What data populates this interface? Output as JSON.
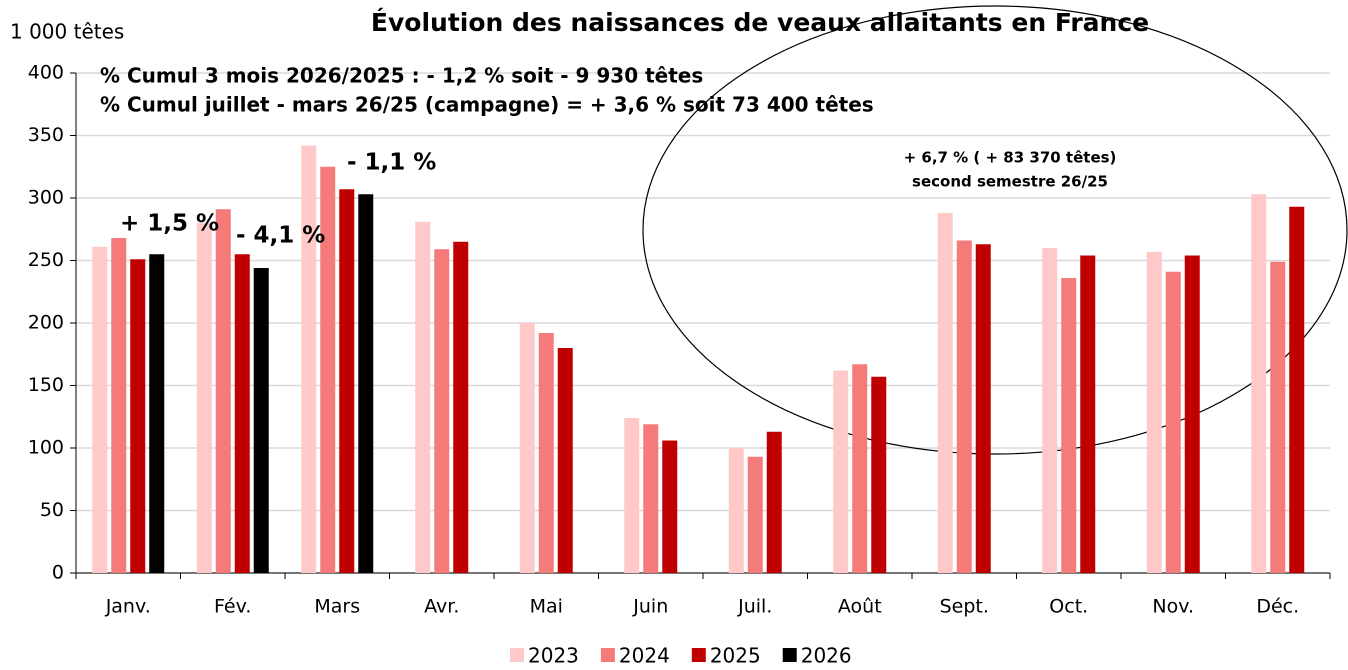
{
  "chart_data": {
    "type": "bar",
    "title": "Évolution des naissances de veaux allaitants en France",
    "y_axis_label": "1 000 têtes",
    "categories": [
      "Janv.",
      "Fév.",
      "Mars",
      "Avr.",
      "Mai",
      "Juin",
      "Juil.",
      "Août",
      "Sept.",
      "Oct.",
      "Nov.",
      "Déc."
    ],
    "series": [
      {
        "name": "2023",
        "color": "#ffc9c9",
        "values": [
          261,
          280,
          342,
          281,
          200,
          124,
          100,
          162,
          288,
          260,
          257,
          303
        ]
      },
      {
        "name": "2024",
        "color": "#f57a7a",
        "values": [
          268,
          291,
          325,
          259,
          192,
          119,
          93,
          167,
          266,
          236,
          241,
          249
        ]
      },
      {
        "name": "2025",
        "color": "#c00000",
        "values": [
          251,
          255,
          307,
          265,
          180,
          106,
          113,
          157,
          263,
          254,
          254,
          293
        ]
      },
      {
        "name": "2026",
        "color": "#000000",
        "values": [
          255,
          244,
          303,
          null,
          null,
          null,
          null,
          null,
          null,
          null,
          null,
          null
        ]
      }
    ],
    "ylim": [
      0,
      400
    ],
    "yticks": [
      0,
      50,
      100,
      150,
      200,
      250,
      300,
      350,
      400
    ],
    "grid": true,
    "annotations": [
      "% Cumul 3 mois 2026/2025 : - 1,2 % soit - 9 930 têtes",
      "% Cumul juillet - mars 26/25 (campagne) = + 3,6 % soit 73 400 têtes",
      "+ 1,5 %",
      "- 4,1 %",
      "- 1,1 %",
      "+ 6,7 % ( + 83 370 têtes)",
      "second semestre 26/25"
    ],
    "legend": "bottom"
  }
}
